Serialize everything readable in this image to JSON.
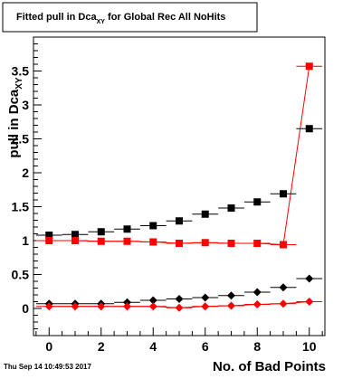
{
  "chart_data": {
    "type": "scatter",
    "title": {
      "main": "Fitted pull in Dca",
      "subscript": "XY",
      "rest": " for Global Rec All NoHits"
    },
    "xlabel": "No. of Bad Points",
    "ylabel": {
      "main": "pull in Dca",
      "subscript": "XY"
    },
    "xlim": [
      -0.6,
      10.6
    ],
    "ylim": [
      -0.4,
      4.0
    ],
    "x_ticks": [
      0,
      2,
      4,
      6,
      8,
      10
    ],
    "x_tick_labels": [
      "0",
      "2",
      "4",
      "6",
      "8",
      "10"
    ],
    "y_ticks": [
      0,
      0.5,
      1,
      1.5,
      2,
      2.5,
      3,
      3.5
    ],
    "y_tick_labels": [
      "0",
      "0.5",
      "1",
      "1.5",
      "2",
      "2.5",
      "3",
      "3.5"
    ],
    "x_error_half_width": 0.5,
    "series": [
      {
        "marker": "square",
        "color": "#000000",
        "fit_line": false,
        "x": [
          0,
          1,
          2,
          3,
          4,
          5,
          6,
          7,
          8,
          9,
          10
        ],
        "y": [
          1.08,
          1.09,
          1.13,
          1.17,
          1.22,
          1.29,
          1.39,
          1.48,
          1.57,
          1.69,
          2.65
        ]
      },
      {
        "marker": "square",
        "color": "#ff0000",
        "fit_line": true,
        "x": [
          0,
          1,
          2,
          3,
          4,
          5,
          6,
          7,
          8,
          9,
          10
        ],
        "y": [
          1.0,
          1.0,
          0.99,
          0.99,
          0.98,
          0.96,
          0.97,
          0.96,
          0.96,
          0.94,
          3.57
        ]
      },
      {
        "marker": "diamond",
        "color": "#000000",
        "fit_line": false,
        "x": [
          0,
          1,
          2,
          3,
          4,
          5,
          6,
          7,
          8,
          9,
          10
        ],
        "y": [
          0.07,
          0.07,
          0.07,
          0.09,
          0.12,
          0.14,
          0.16,
          0.19,
          0.24,
          0.31,
          0.44
        ]
      },
      {
        "marker": "diamond",
        "color": "#ff0000",
        "fit_line": true,
        "x": [
          0,
          1,
          2,
          3,
          4,
          5,
          6,
          7,
          8,
          9,
          10
        ],
        "y": [
          0.03,
          0.03,
          0.03,
          0.03,
          0.03,
          0.01,
          0.03,
          0.04,
          0.06,
          0.07,
          0.1
        ]
      }
    ],
    "grid": false,
    "footer_timestamp": "Thu Sep 14 10:49:53 2017"
  }
}
